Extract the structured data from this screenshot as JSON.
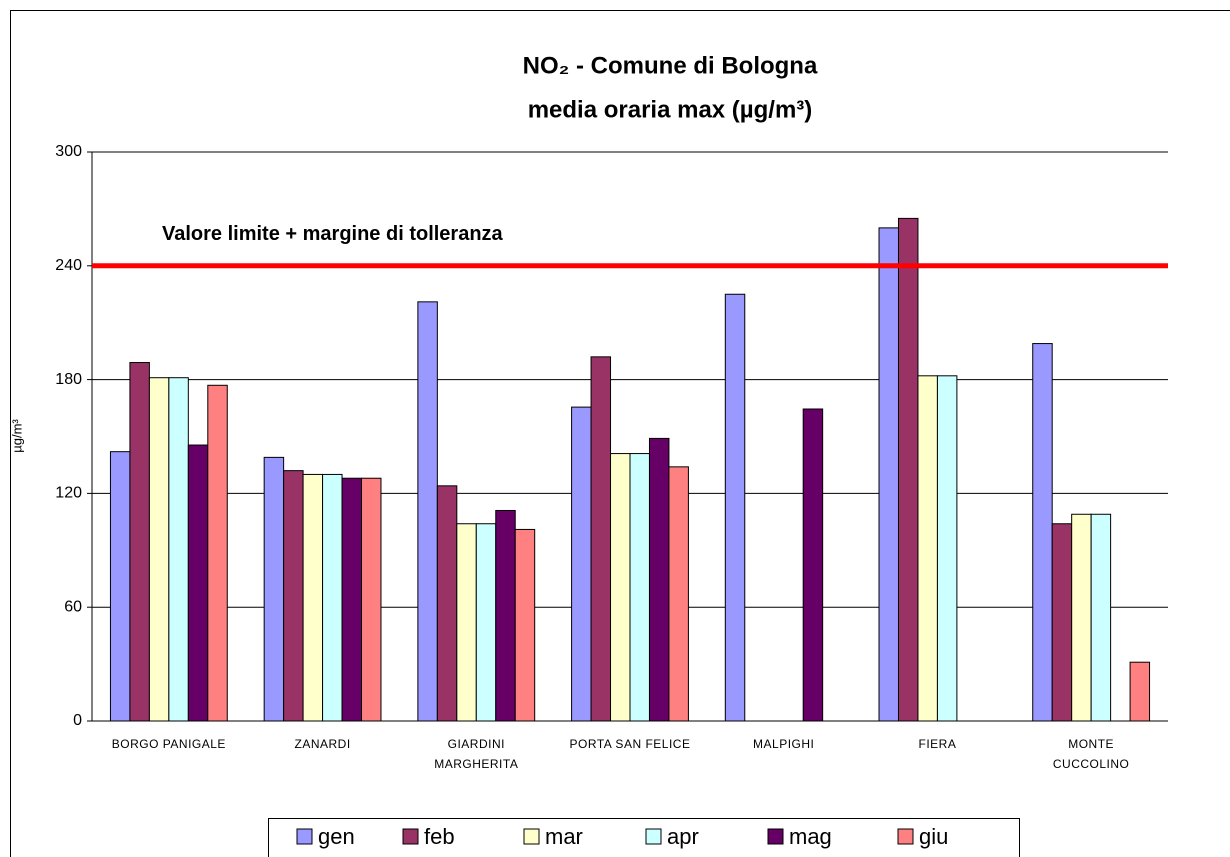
{
  "chart_data": {
    "type": "bar",
    "title": "NO₂ - Comune di Bologna",
    "subtitle": "media oraria max  (µg/m³)",
    "y_label": "µg/m³",
    "categories": [
      [
        "BORGO PANIGALE"
      ],
      [
        "ZANARDI"
      ],
      [
        "GIARDINI",
        "MARGHERITA"
      ],
      [
        "PORTA SAN FELICE"
      ],
      [
        "MALPIGHI"
      ],
      [
        "FIERA"
      ],
      [
        "MONTE",
        "CUCCOLINO"
      ]
    ],
    "series": [
      {
        "name": "gen",
        "color": "#9999ff",
        "values": [
          142,
          139,
          221,
          165.5,
          225,
          260,
          199
        ]
      },
      {
        "name": "feb",
        "color": "#993366",
        "values": [
          189,
          132,
          124,
          192,
          null,
          265,
          104
        ]
      },
      {
        "name": "mar",
        "color": "#ffffcc",
        "values": [
          181,
          130,
          104,
          141,
          null,
          182,
          109
        ]
      },
      {
        "name": "apr",
        "color": "#ccffff",
        "values": [
          181,
          130,
          104,
          141,
          null,
          182,
          109
        ]
      },
      {
        "name": "mag",
        "color": "#660066",
        "values": [
          145.5,
          128,
          111,
          149,
          164.5,
          null,
          null
        ]
      },
      {
        "name": "giu",
        "color": "#ff8080",
        "values": [
          177,
          128,
          101,
          134,
          null,
          null,
          31
        ]
      }
    ],
    "ylim": [
      0,
      300
    ],
    "yticks": [
      0,
      60,
      120,
      180,
      240,
      300
    ],
    "grid": true,
    "threshold": {
      "value": 240,
      "label": "Valore limite + margine di tolleranza",
      "color": "#ff0000"
    },
    "legend": "bottom"
  }
}
